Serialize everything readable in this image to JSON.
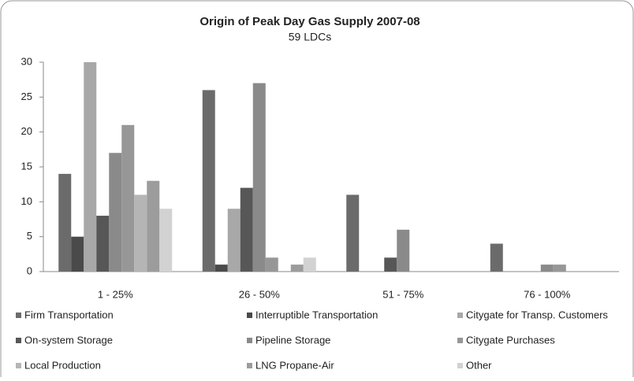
{
  "chart_data": {
    "type": "bar",
    "title": "Origin of Peak Day Gas Supply 2007-08",
    "subtitle": "59 LDCs",
    "categories": [
      "1 - 25%",
      "26 - 50%",
      "51 - 75%",
      "76 - 100%"
    ],
    "series": [
      {
        "name": "Firm Transportation",
        "color": "#6b6b6b",
        "values": [
          14,
          26,
          11,
          4
        ]
      },
      {
        "name": "Interruptible Transportation",
        "color": "#4a4a4a",
        "values": [
          5,
          1,
          0,
          0
        ]
      },
      {
        "name": "Citygate for Transp. Customers",
        "color": "#a8a8a8",
        "values": [
          30,
          9,
          0,
          0
        ]
      },
      {
        "name": "On-system Storage",
        "color": "#575757",
        "values": [
          8,
          12,
          2,
          0
        ]
      },
      {
        "name": "Pipeline Storage",
        "color": "#8a8a8a",
        "values": [
          17,
          27,
          6,
          1
        ]
      },
      {
        "name": "Citygate Purchases",
        "color": "#979797",
        "values": [
          21,
          2,
          0,
          1
        ]
      },
      {
        "name": "Local Production",
        "color": "#b5b5b5",
        "values": [
          11,
          0,
          0,
          0
        ]
      },
      {
        "name": "LNG Propane-Air",
        "color": "#9c9c9c",
        "values": [
          13,
          1,
          0,
          0
        ]
      },
      {
        "name": "Other",
        "color": "#d2d2d2",
        "values": [
          9,
          2,
          0,
          0
        ]
      }
    ],
    "ylim": [
      0,
      30
    ],
    "yticks": [
      0,
      5,
      10,
      15,
      20,
      25,
      30
    ]
  }
}
